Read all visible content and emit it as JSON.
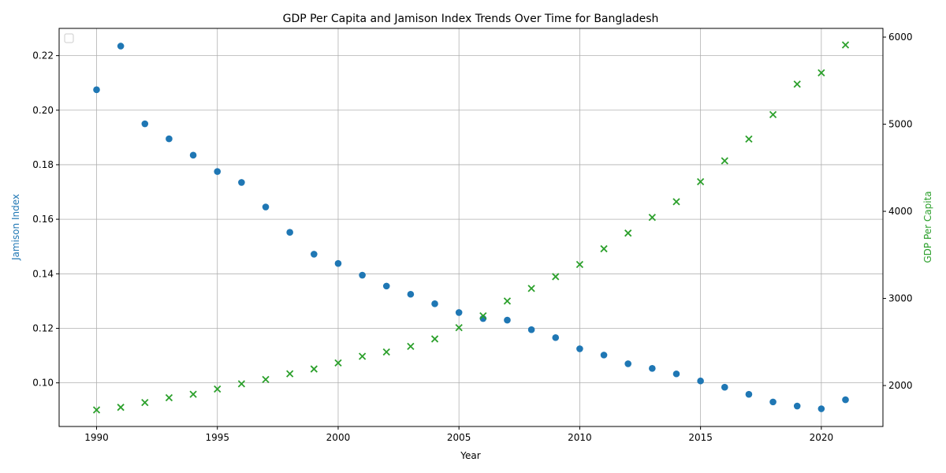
{
  "chart_data": {
    "type": "scatter",
    "title": "GDP Per Capita and Jamison Index Trends Over Time for Bangladesh",
    "xlabel": "Year",
    "ylabel_left": "Jamison Index",
    "ylabel_right": "GDP Per Capita",
    "xlim": [
      1988.45,
      2022.55
    ],
    "ylim_left": [
      0.084,
      0.23
    ],
    "ylim_right": [
      1530,
      6100
    ],
    "x_ticks": [
      1990,
      1995,
      2000,
      2005,
      2010,
      2015,
      2020
    ],
    "y_ticks_left": [
      0.1,
      0.12,
      0.14,
      0.16,
      0.18,
      0.2,
      0.22
    ],
    "y_ticks_right": [
      2000,
      3000,
      4000,
      5000,
      6000
    ],
    "grid": true,
    "legend": "top-left",
    "colors": {
      "jamison": "#1f77b4",
      "gdp": "#2ca02c"
    },
    "x": [
      1990,
      1991,
      1992,
      1993,
      1994,
      1995,
      1996,
      1997,
      1998,
      1999,
      2000,
      2001,
      2002,
      2003,
      2004,
      2005,
      2006,
      2007,
      2008,
      2009,
      2010,
      2011,
      2012,
      2013,
      2014,
      2015,
      2016,
      2017,
      2018,
      2019,
      2020,
      2021
    ],
    "series": [
      {
        "axis": "left",
        "marker": "circle",
        "values": [
          0.2075,
          0.2235,
          0.195,
          0.1895,
          0.1835,
          0.1775,
          0.1735,
          0.1645,
          0.1552,
          0.1472,
          0.1438,
          0.1395,
          0.1355,
          0.1325,
          0.129,
          0.1258,
          0.1236,
          0.123,
          0.1195,
          0.1166,
          0.1125,
          0.1102,
          0.107,
          0.1053,
          0.1033,
          0.1007,
          0.0984,
          0.0958,
          0.093,
          0.0915,
          0.0905,
          0.0938
        ]
      },
      {
        "axis": "right",
        "marker": "x",
        "values": [
          1720,
          1750,
          1805,
          1860,
          1900,
          1960,
          2020,
          2070,
          2135,
          2190,
          2260,
          2335,
          2385,
          2450,
          2535,
          2665,
          2800,
          2970,
          3115,
          3250,
          3390,
          3570,
          3750,
          3930,
          4110,
          4340,
          4580,
          4830,
          5110,
          5460,
          5590,
          5910
        ]
      }
    ]
  }
}
